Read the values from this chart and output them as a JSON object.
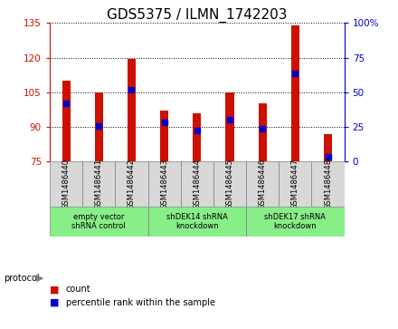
{
  "title": "GDS5375 / ILMN_1742203",
  "samples": [
    "GSM1486440",
    "GSM1486441",
    "GSM1486442",
    "GSM1486443",
    "GSM1486444",
    "GSM1486445",
    "GSM1486446",
    "GSM1486447",
    "GSM1486448"
  ],
  "bar_tops": [
    110,
    105,
    119.5,
    97,
    96,
    105,
    100,
    134,
    87
  ],
  "bar_bottom": 75,
  "percentile_values": [
    100,
    90.5,
    106,
    92,
    88.5,
    93,
    89,
    113,
    77
  ],
  "ylim_left": [
    75,
    135
  ],
  "ylim_right": [
    0,
    100
  ],
  "yticks_left": [
    75,
    90,
    105,
    120,
    135
  ],
  "yticks_right": [
    0,
    25,
    50,
    75,
    100
  ],
  "bar_color": "#cc1100",
  "marker_color": "#0000cc",
  "bg_color": "#ffffff",
  "cell_color": "#d8d8d8",
  "groups": [
    {
      "label": "empty vector\nshRNA control",
      "start": 0,
      "end": 3,
      "color": "#88ee88"
    },
    {
      "label": "shDEK14 shRNA\nknockdown",
      "start": 3,
      "end": 6,
      "color": "#88ee88"
    },
    {
      "label": "shDEK17 shRNA\nknockdown",
      "start": 6,
      "end": 9,
      "color": "#88ee88"
    }
  ],
  "legend_count_label": "count",
  "legend_pct_label": "percentile rank within the sample",
  "protocol_label": "protocol",
  "title_fontsize": 11,
  "tick_fontsize": 7.5,
  "bar_width": 0.25
}
